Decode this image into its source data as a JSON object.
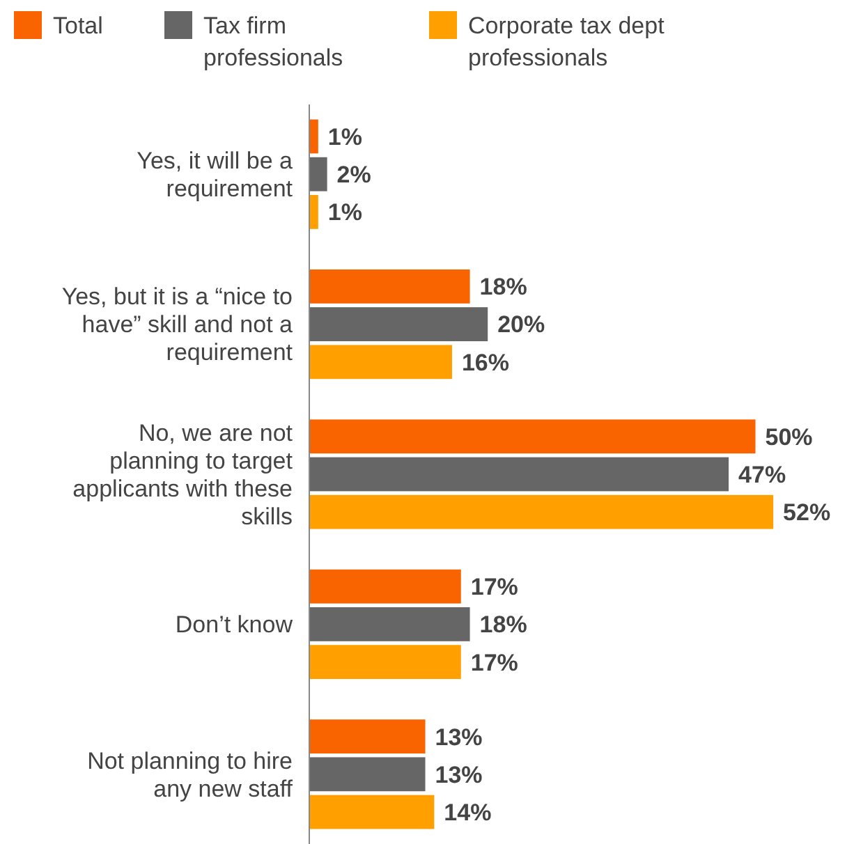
{
  "chart_data": {
    "type": "bar",
    "orientation": "horizontal",
    "categories": [
      "Yes, it will be a requirement",
      "Yes, but it is a “nice to have” skill and not a requirement",
      "No, we are not planning to target applicants with these skills",
      "Don’t know",
      "Not planning to hire any new staff"
    ],
    "series": [
      {
        "name": "Total",
        "color": "#fa6400",
        "values": [
          1,
          18,
          50,
          17,
          13
        ],
        "value_labels": [
          "1%",
          "18%",
          "50%",
          "17%",
          "13%"
        ]
      },
      {
        "name": "Tax firm professionals",
        "color": "#666666",
        "values": [
          2,
          20,
          47,
          18,
          13
        ],
        "value_labels": [
          "2%",
          "20%",
          "47%",
          "18%",
          "13%"
        ]
      },
      {
        "name": "Corporate tax dept professionals",
        "color": "#ffa000",
        "values": [
          1,
          16,
          52,
          17,
          14
        ],
        "value_labels": [
          "1%",
          "16%",
          "52%",
          "17%",
          "14%"
        ]
      }
    ],
    "legend": "top"
  }
}
